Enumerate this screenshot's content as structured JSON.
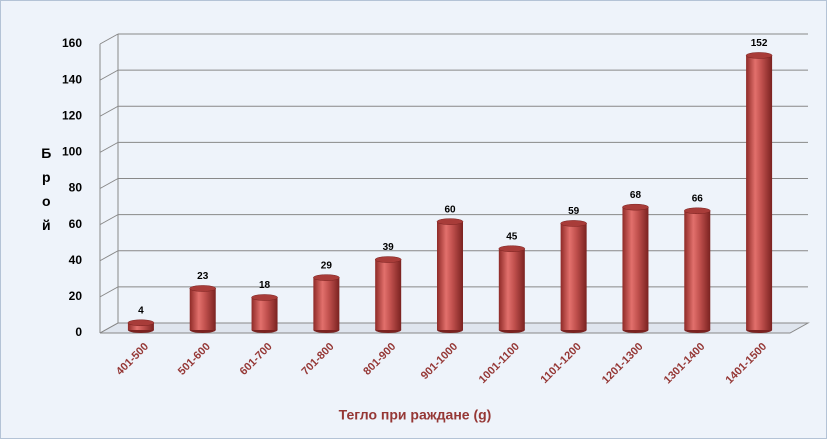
{
  "chart_data": {
    "type": "bar",
    "x_label": "Тегло при раждане (g)",
    "y_label": "Брой",
    "categories": [
      "401-500",
      "501-600",
      "601-700",
      "701-800",
      "801-900",
      "901-1000",
      "1001-1100",
      "1101-1200",
      "1201-1300",
      "1301-1400",
      "1401-1500"
    ],
    "values": [
      4,
      23,
      18,
      29,
      39,
      60,
      45,
      59,
      68,
      66,
      152
    ],
    "color": "#c0504d",
    "ylim": [
      0,
      160
    ],
    "yticks": [
      0,
      20,
      40,
      60,
      80,
      100,
      120,
      140,
      160
    ],
    "grid": true
  }
}
